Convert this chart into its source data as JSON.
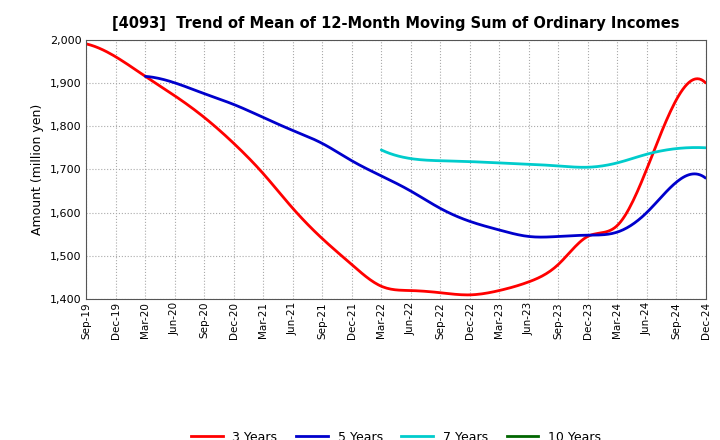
{
  "title": "[4093]  Trend of Mean of 12-Month Moving Sum of Ordinary Incomes",
  "ylabel": "Amount (million yen)",
  "ylim": [
    1400,
    2000
  ],
  "yticks": [
    1400,
    1500,
    1600,
    1700,
    1800,
    1900,
    2000
  ],
  "background_color": "#ffffff",
  "grid_color": "#aaaaaa",
  "x_labels": [
    "Sep-19",
    "Dec-19",
    "Mar-20",
    "Jun-20",
    "Sep-20",
    "Dec-20",
    "Mar-21",
    "Jun-21",
    "Sep-21",
    "Dec-21",
    "Mar-22",
    "Jun-22",
    "Sep-22",
    "Dec-22",
    "Mar-23",
    "Jun-23",
    "Sep-23",
    "Dec-23",
    "Mar-24",
    "Jun-24",
    "Sep-24",
    "Dec-24"
  ],
  "series": {
    "3 Years": {
      "color": "#ff0000",
      "data_x": [
        0,
        1,
        2,
        3,
        4,
        5,
        6,
        7,
        8,
        9,
        10,
        11,
        12,
        13,
        14,
        15,
        16,
        17,
        18,
        19,
        20,
        21
      ],
      "data_y": [
        1990,
        1960,
        1915,
        1870,
        1820,
        1760,
        1690,
        1610,
        1540,
        1480,
        1430,
        1420,
        1415,
        1410,
        1420,
        1440,
        1480,
        1545,
        1570,
        1700,
        1860,
        1900
      ]
    },
    "5 Years": {
      "color": "#0000cc",
      "data_x": [
        2,
        3,
        4,
        5,
        6,
        7,
        8,
        9,
        10,
        11,
        12,
        13,
        14,
        15,
        16,
        17,
        18,
        19,
        20,
        21
      ],
      "data_y": [
        1915,
        1900,
        1875,
        1850,
        1820,
        1790,
        1760,
        1720,
        1685,
        1650,
        1610,
        1580,
        1560,
        1545,
        1545,
        1548,
        1555,
        1600,
        1670,
        1680
      ]
    },
    "7 Years": {
      "color": "#00cccc",
      "data_x": [
        10,
        11,
        12,
        13,
        14,
        15,
        16,
        17,
        18,
        19,
        20,
        21
      ],
      "data_y": [
        1745,
        1725,
        1720,
        1718,
        1715,
        1712,
        1708,
        1705,
        1715,
        1735,
        1748,
        1750
      ]
    },
    "10 Years": {
      "color": "#006600",
      "data_x": [],
      "data_y": []
    }
  },
  "legend_order": [
    "3 Years",
    "5 Years",
    "7 Years",
    "10 Years"
  ],
  "legend_colors": [
    "#ff0000",
    "#0000cc",
    "#00cccc",
    "#006600"
  ]
}
